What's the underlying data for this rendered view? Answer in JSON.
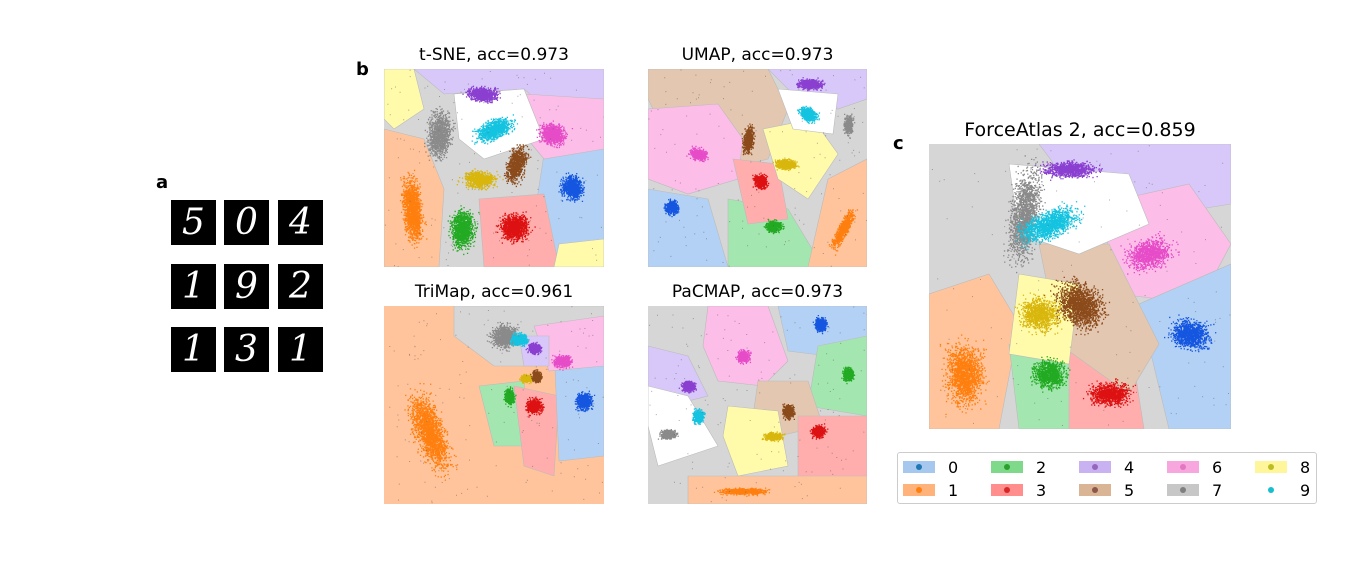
{
  "panels": {
    "a": "a",
    "b": "b",
    "c": "c"
  },
  "digits": [
    "5",
    "0",
    "4",
    "1",
    "9",
    "2",
    "1",
    "3",
    "1"
  ],
  "colors": {
    "0": {
      "region": "#b3d1f4",
      "point": "#1456e0",
      "swatch": "#a6c8ee",
      "dot": "#1f77b4"
    },
    "1": {
      "region": "#ffc49c",
      "point": "#ff7f0e",
      "swatch": "#ffb27a",
      "dot": "#ff7f0e"
    },
    "2": {
      "region": "#a4e6b0",
      "point": "#22aa22",
      "swatch": "#7fd98b",
      "dot": "#2ca02c"
    },
    "3": {
      "region": "#ffaead",
      "point": "#dd1111",
      "swatch": "#ff8e8c",
      "dot": "#d62728"
    },
    "4": {
      "region": "#d8c8f9",
      "point": "#8a3fd1",
      "swatch": "#c9b2f2",
      "dot": "#9467bd"
    },
    "5": {
      "region": "#e3c7b0",
      "point": "#8b4a1a",
      "swatch": "#d9b596",
      "dot": "#8c564b"
    },
    "6": {
      "region": "#fcbde8",
      "point": "#e64cc8",
      "swatch": "#f8a6de",
      "dot": "#e377c2"
    },
    "7": {
      "region": "#d6d6d6",
      "point": "#8a8a8a",
      "swatch": "#c7c7c7",
      "dot": "#7f7f7f"
    },
    "8": {
      "region": "#fffbab",
      "point": "#d8b60c",
      "swatch": "#fff59a",
      "dot": "#bcbd22"
    },
    "9": {
      "region": "#ffffff",
      "point": "#14c3e0",
      "swatch": "#ffffff",
      "dot": "#17becf"
    }
  },
  "chart_data": [
    {
      "type": "scatter",
      "title": "t-SNE, acc=0.973",
      "accuracy": 0.973
    },
    {
      "type": "scatter",
      "title": "UMAP, acc=0.973",
      "accuracy": 0.973
    },
    {
      "type": "scatter",
      "title": "TriMap, acc=0.961",
      "accuracy": 0.961
    },
    {
      "type": "scatter",
      "title": "PaCMAP, acc=0.973",
      "accuracy": 0.973
    },
    {
      "type": "scatter",
      "title": "ForceAtlas 2, acc=0.859",
      "accuracy": 0.859
    }
  ],
  "legend": {
    "entries": [
      {
        "label": "0",
        "class": "0"
      },
      {
        "label": "1",
        "class": "1"
      },
      {
        "label": "2",
        "class": "2"
      },
      {
        "label": "3",
        "class": "3"
      },
      {
        "label": "4",
        "class": "4"
      },
      {
        "label": "5",
        "class": "5"
      },
      {
        "label": "6",
        "class": "6"
      },
      {
        "label": "7",
        "class": "7"
      },
      {
        "label": "8",
        "class": "8"
      },
      {
        "label": "9",
        "class": "9"
      }
    ]
  }
}
